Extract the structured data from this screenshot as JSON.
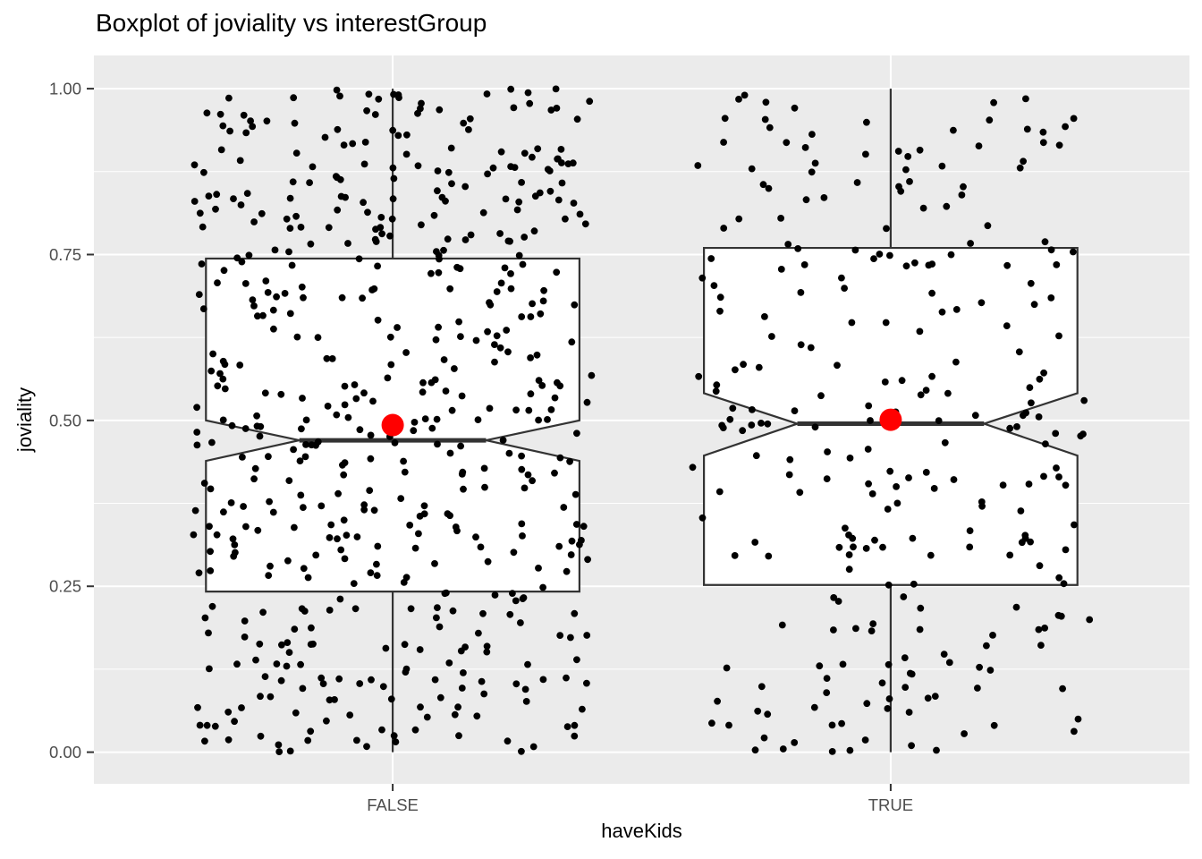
{
  "title": "Boxplot of joviality vs interestGroup",
  "x_axis": {
    "label": "haveKids",
    "tick_labels": [
      "FALSE",
      "TRUE"
    ]
  },
  "y_axis": {
    "label": "joviality",
    "tick_labels": [
      "0.00",
      "0.25",
      "0.50",
      "0.75",
      "1.00"
    ],
    "tick_values": [
      0,
      0.25,
      0.5,
      0.75,
      1
    ],
    "minor_tick_values": [
      0.125,
      0.375,
      0.625,
      0.875
    ],
    "range": [
      0,
      1
    ]
  },
  "chart_data": {
    "type": "boxplot",
    "title": "Boxplot of joviality vs interestGroup",
    "xlabel": "haveKids",
    "ylabel": "joviality",
    "categories": [
      "FALSE",
      "TRUE"
    ],
    "ylim": [
      0,
      1
    ],
    "grid": true,
    "legend": "none",
    "notched": true,
    "box_width": 0.75,
    "notch_width": 0.5,
    "jitter_width": 0.4,
    "series": [
      {
        "name": "FALSE",
        "min": 0.0,
        "q1": 0.242,
        "median": 0.47,
        "q3": 0.744,
        "max": 1.0,
        "mean": 0.493,
        "notch_low": 0.439,
        "notch_high": 0.5,
        "n_points": 530
      },
      {
        "name": "TRUE",
        "min": 0.0,
        "q1": 0.252,
        "median": 0.495,
        "q3": 0.76,
        "max": 1.0,
        "mean": 0.501,
        "notch_low": 0.447,
        "notch_high": 0.541,
        "n_points": 265
      }
    ],
    "overlays": [
      "jittered raw points (black)",
      "mean marker (red point)"
    ]
  },
  "style": {
    "background": "#FFFFFF",
    "panel_bg": "#EBEBEB",
    "grid_color": "#FFFFFF",
    "box_fill": "#FFFFFF",
    "box_stroke": "#333333",
    "point_color": "#000000",
    "mean_color": "#FF0000",
    "tick_label_color": "#4D4D4D",
    "axis_tick_color": "#333333",
    "title_color": "#000000"
  }
}
